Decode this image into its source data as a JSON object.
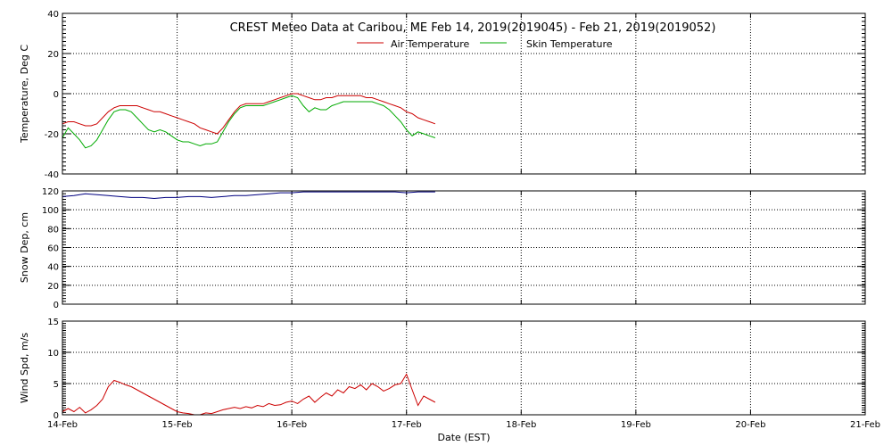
{
  "chart_data": {
    "type": "line",
    "title": "CREST Meteo Data at Caribou, ME   Feb 14, 2019(2019045) - Feb 21, 2019(2019052)",
    "xlabel": "Date (EST)",
    "x_tick_labels": [
      "14-Feb",
      "15-Feb",
      "16-Feb",
      "17-Feb",
      "18-Feb",
      "19-Feb",
      "20-Feb",
      "21-Feb"
    ],
    "x_range_days": [
      0,
      7
    ],
    "x_unit_note": "days after 14-Feb 00:00",
    "panels": [
      {
        "ylabel": "Temperature, Deg C",
        "ylim": [
          -40,
          40
        ],
        "y_ticks": [
          -40,
          -20,
          0,
          20,
          40
        ],
        "grid": true,
        "legend": "top-center",
        "series": [
          {
            "name": "Air Temperature",
            "color": "#cc0000",
            "x": [
              0,
              0.05,
              0.1,
              0.15,
              0.2,
              0.25,
              0.3,
              0.35,
              0.4,
              0.45,
              0.5,
              0.55,
              0.6,
              0.65,
              0.7,
              0.75,
              0.8,
              0.85,
              0.9,
              0.95,
              1.0,
              1.05,
              1.1,
              1.15,
              1.2,
              1.25,
              1.3,
              1.35,
              1.4,
              1.45,
              1.5,
              1.55,
              1.6,
              1.65,
              1.7,
              1.75,
              1.8,
              1.85,
              1.9,
              1.95,
              2.0,
              2.05,
              2.1,
              2.15,
              2.2,
              2.25,
              2.3,
              2.35,
              2.4,
              2.45,
              2.5,
              2.55,
              2.6,
              2.65,
              2.7,
              2.75,
              2.8,
              2.85,
              2.9,
              2.95,
              3.0,
              3.05,
              3.1,
              3.15,
              3.2,
              3.25
            ],
            "values": [
              -15,
              -14,
              -14,
              -15,
              -16,
              -16,
              -15,
              -12,
              -9,
              -7,
              -6,
              -6,
              -6,
              -6,
              -7,
              -8,
              -9,
              -9,
              -10,
              -11,
              -12,
              -13,
              -14,
              -15,
              -17,
              -18,
              -19,
              -20,
              -17,
              -13,
              -9,
              -6,
              -5,
              -5,
              -5,
              -5,
              -4,
              -3,
              -2,
              -1,
              0,
              0,
              -1,
              -2,
              -3,
              -3,
              -2,
              -2,
              -1,
              -1,
              -1,
              -1,
              -1,
              -2,
              -2,
              -3,
              -4,
              -5,
              -6,
              -7,
              -9,
              -10,
              -12,
              -13,
              -14,
              -15
            ]
          },
          {
            "name": "Skin Temperature",
            "color": "#00aa00",
            "x": [
              0,
              0.05,
              0.1,
              0.15,
              0.2,
              0.25,
              0.3,
              0.35,
              0.4,
              0.45,
              0.5,
              0.55,
              0.6,
              0.65,
              0.7,
              0.75,
              0.8,
              0.85,
              0.9,
              0.95,
              1.0,
              1.05,
              1.1,
              1.15,
              1.2,
              1.25,
              1.3,
              1.35,
              1.4,
              1.45,
              1.5,
              1.55,
              1.6,
              1.65,
              1.7,
              1.75,
              1.8,
              1.85,
              1.9,
              1.95,
              2.0,
              2.05,
              2.1,
              2.15,
              2.2,
              2.25,
              2.3,
              2.35,
              2.4,
              2.45,
              2.5,
              2.55,
              2.6,
              2.65,
              2.7,
              2.75,
              2.8,
              2.85,
              2.9,
              2.95,
              3.0,
              3.05,
              3.1,
              3.15,
              3.2,
              3.25
            ],
            "values": [
              -22,
              -17,
              -20,
              -23,
              -27,
              -26,
              -23,
              -18,
              -13,
              -9,
              -8,
              -8,
              -9,
              -12,
              -15,
              -18,
              -19,
              -18,
              -19,
              -21,
              -23,
              -24,
              -24,
              -25,
              -26,
              -25,
              -25,
              -24,
              -19,
              -14,
              -10,
              -7,
              -6,
              -6,
              -6,
              -6,
              -5,
              -4,
              -3,
              -2,
              -1,
              -2,
              -6,
              -9,
              -7,
              -8,
              -8,
              -6,
              -5,
              -4,
              -4,
              -4,
              -4,
              -4,
              -4,
              -5,
              -6,
              -8,
              -11,
              -14,
              -18,
              -21,
              -19,
              -20,
              -21,
              -22
            ]
          }
        ]
      },
      {
        "ylabel": "Snow Dep, cm",
        "ylim": [
          0,
          120
        ],
        "y_ticks": [
          0,
          20,
          40,
          60,
          80,
          100,
          120
        ],
        "grid": true,
        "series": [
          {
            "color": "#000080",
            "x": [
              0,
              0.1,
              0.2,
              0.3,
              0.4,
              0.5,
              0.6,
              0.7,
              0.8,
              0.9,
              1.0,
              1.1,
              1.2,
              1.3,
              1.4,
              1.5,
              1.6,
              1.7,
              1.8,
              1.9,
              2.0,
              2.1,
              2.2,
              2.3,
              2.4,
              2.5,
              2.6,
              2.7,
              2.8,
              2.9,
              3.0,
              3.1,
              3.2,
              3.25
            ],
            "values": [
              114,
              115,
              117,
              116,
              115,
              114,
              113,
              113,
              112,
              113,
              113,
              114,
              114,
              113,
              114,
              115,
              115,
              116,
              117,
              118,
              118,
              119,
              119,
              119,
              119,
              119,
              119,
              119,
              119,
              119,
              118,
              119,
              119,
              119
            ]
          }
        ]
      },
      {
        "ylabel": "Wind Spd, m/s",
        "ylim": [
          0,
          15
        ],
        "y_ticks": [
          0,
          5,
          10,
          15
        ],
        "grid": true,
        "series": [
          {
            "color": "#cc0000",
            "x": [
              0,
              0.05,
              0.1,
              0.15,
              0.2,
              0.25,
              0.3,
              0.35,
              0.4,
              0.45,
              0.5,
              0.55,
              0.6,
              0.65,
              0.7,
              0.75,
              0.8,
              0.85,
              0.9,
              0.95,
              1.0,
              1.05,
              1.1,
              1.15,
              1.2,
              1.25,
              1.3,
              1.35,
              1.4,
              1.45,
              1.5,
              1.55,
              1.6,
              1.65,
              1.7,
              1.75,
              1.8,
              1.85,
              1.9,
              1.95,
              2.0,
              2.05,
              2.1,
              2.15,
              2.2,
              2.25,
              2.3,
              2.35,
              2.4,
              2.45,
              2.5,
              2.55,
              2.6,
              2.65,
              2.7,
              2.75,
              2.8,
              2.85,
              2.9,
              2.95,
              3.0,
              3.05,
              3.1,
              3.15,
              3.2,
              3.25
            ],
            "values": [
              0.5,
              1.0,
              0.5,
              1.2,
              0.3,
              0.8,
              1.5,
              2.5,
              4.5,
              5.5,
              5.2,
              4.8,
              4.5,
              4.0,
              3.5,
              3.0,
              2.5,
              2.0,
              1.5,
              1.0,
              0.5,
              0.3,
              0.2,
              0,
              0,
              0.3,
              0.2,
              0.5,
              0.8,
              1.0,
              1.2,
              1.0,
              1.3,
              1.1,
              1.5,
              1.3,
              1.8,
              1.5,
              1.6,
              2.0,
              2.2,
              1.8,
              2.5,
              3.0,
              2.0,
              2.8,
              3.5,
              3.0,
              4.0,
              3.5,
              4.5,
              4.2,
              4.8,
              4.0,
              5.0,
              4.5,
              3.8,
              4.2,
              4.8,
              5.0,
              6.5,
              4.0,
              1.5,
              3.0,
              2.5,
              2.0
            ]
          }
        ]
      }
    ]
  }
}
